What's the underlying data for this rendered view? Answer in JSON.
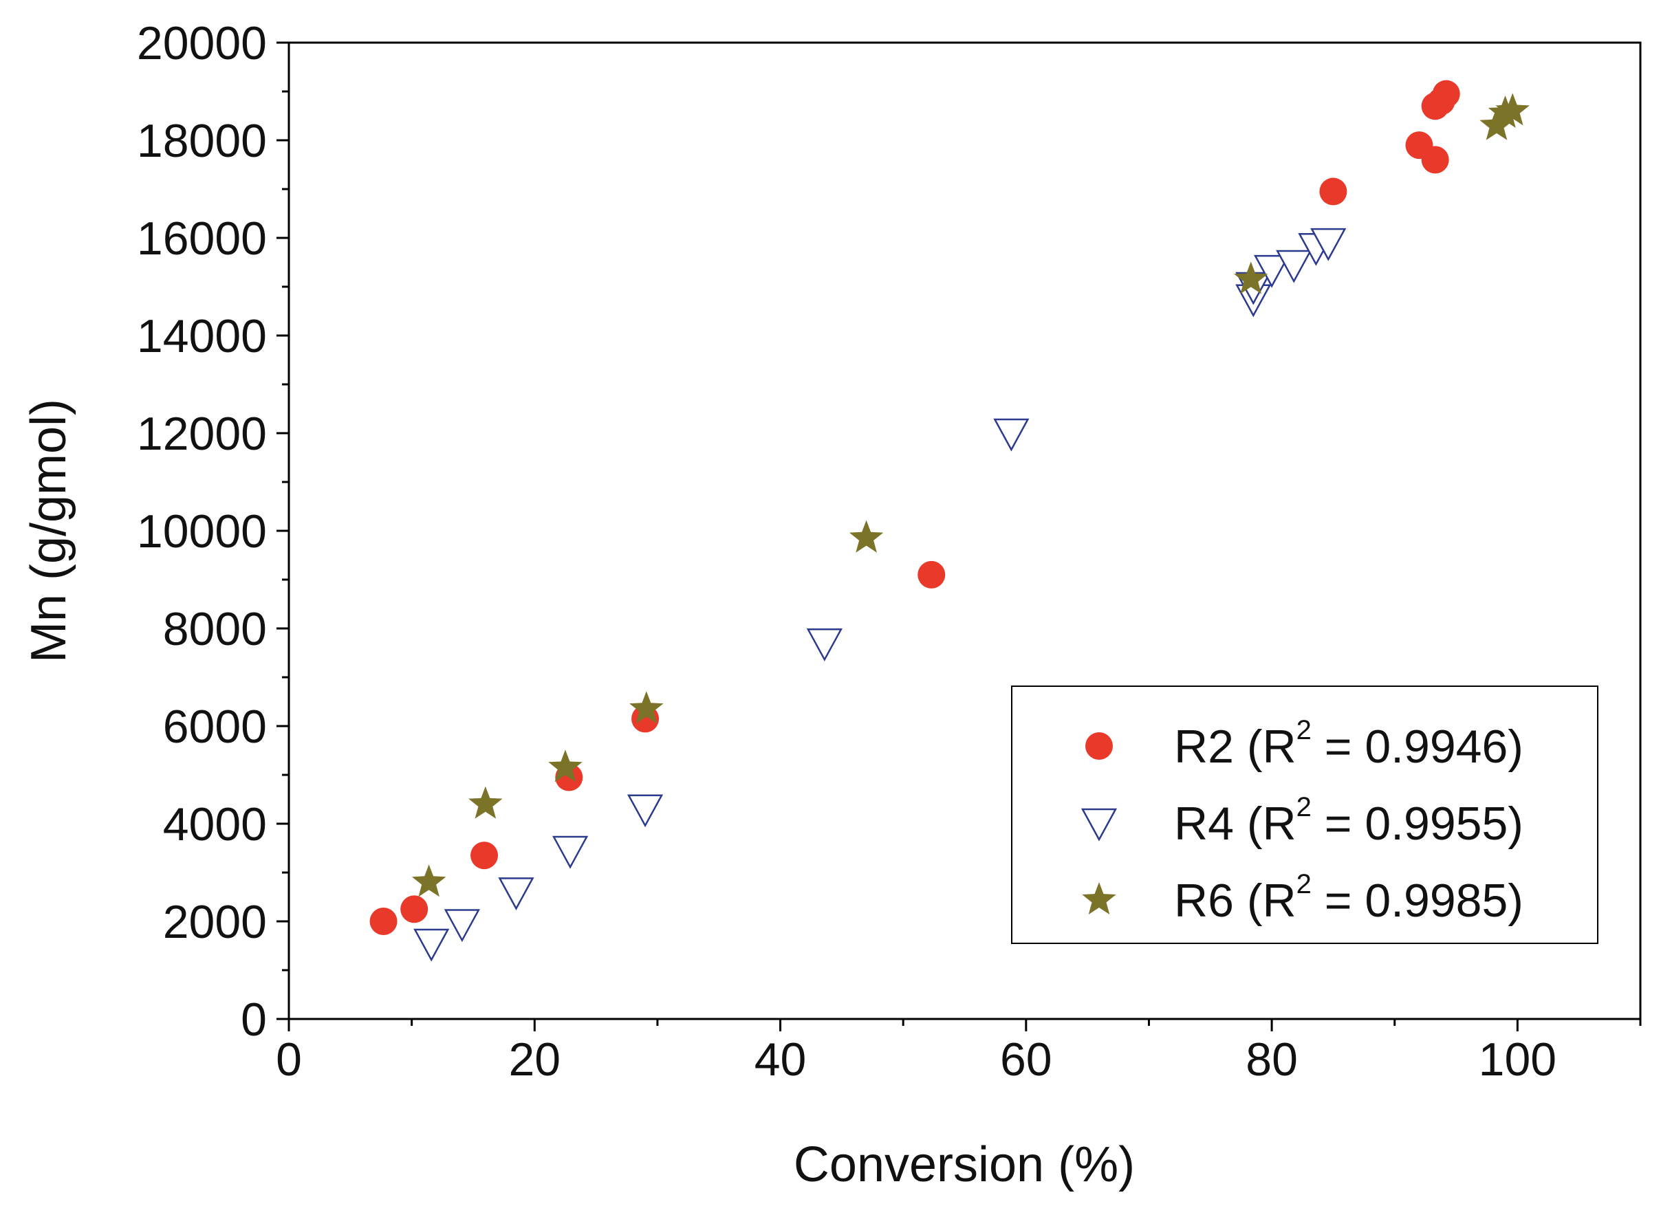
{
  "chart_data": {
    "type": "scatter",
    "title": "",
    "xlabel": "Conversion (%)",
    "ylabel": "Mn (g/gmol)",
    "xlim": [
      0,
      110
    ],
    "ylim": [
      0,
      20000
    ],
    "xticks": [
      0,
      20,
      40,
      60,
      80,
      100
    ],
    "xtick_labels": [
      "0",
      "20",
      "40",
      "60",
      "80",
      "100"
    ],
    "yticks": [
      0,
      2000,
      4000,
      6000,
      8000,
      10000,
      12000,
      14000,
      16000,
      18000,
      20000
    ],
    "ytick_labels": [
      "0",
      "2000",
      "4000",
      "6000",
      "8000",
      "10000",
      "12000",
      "14000",
      "16000",
      "18000",
      "20000"
    ],
    "legend_position": "bottom-right",
    "series": [
      {
        "name": "R2",
        "label_prefix": "R2 (R",
        "sup": "2",
        "label_suffix": " = 0.9946)",
        "marker": "circle",
        "color": "#E8392A",
        "points": [
          [
            7.7,
            2000
          ],
          [
            10.2,
            2250
          ],
          [
            15.9,
            3350
          ],
          [
            22.8,
            4950
          ],
          [
            29.0,
            6150
          ],
          [
            52.3,
            9100
          ],
          [
            85.0,
            16950
          ],
          [
            92.0,
            17900
          ],
          [
            93.3,
            17600
          ],
          [
            93.3,
            18700
          ],
          [
            93.8,
            18800
          ],
          [
            94.2,
            18950
          ]
        ]
      },
      {
        "name": "R4",
        "label_prefix": "R4 (R",
        "sup": "2",
        "label_suffix": " = 0.9955)",
        "marker": "triangle-down",
        "color": "#2B3A8F",
        "points": [
          [
            11.6,
            1550
          ],
          [
            14.1,
            1950
          ],
          [
            18.5,
            2600
          ],
          [
            22.9,
            3450
          ],
          [
            29.0,
            4300
          ],
          [
            43.6,
            7700
          ],
          [
            58.8,
            12000
          ],
          [
            78.5,
            14750
          ],
          [
            78.5,
            15000
          ],
          [
            80.0,
            15350
          ],
          [
            81.8,
            15450
          ],
          [
            83.6,
            15800
          ],
          [
            84.6,
            15900
          ]
        ]
      },
      {
        "name": "R6",
        "label_prefix": "R6 (R",
        "sup": "2",
        "label_suffix": " = 0.9985)",
        "marker": "star",
        "color": "#7A7328",
        "points": [
          [
            11.4,
            2800
          ],
          [
            16.0,
            4400
          ],
          [
            22.5,
            5150
          ],
          [
            29.1,
            6350
          ],
          [
            47.0,
            9850
          ],
          [
            78.3,
            15150
          ],
          [
            98.3,
            18300
          ],
          [
            99.0,
            18550
          ],
          [
            99.6,
            18600
          ]
        ]
      }
    ]
  }
}
